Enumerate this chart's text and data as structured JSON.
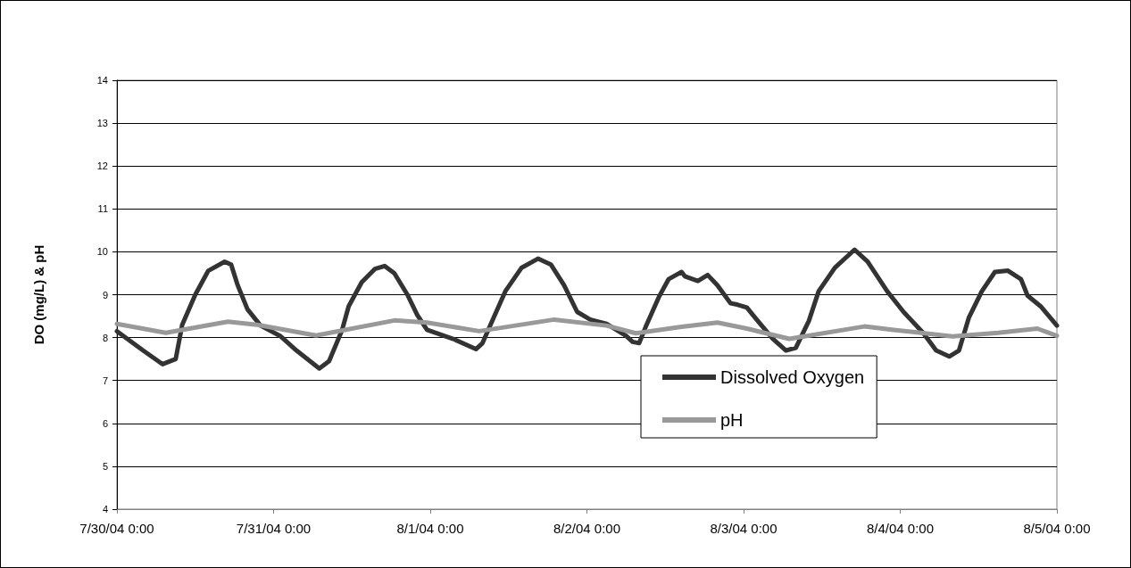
{
  "chart_data": {
    "type": "line",
    "ylabel": "DO (mg/L) & pH",
    "ylim": [
      4,
      14
    ],
    "yticks": [
      4,
      5,
      6,
      7,
      8,
      9,
      10,
      11,
      12,
      13,
      14
    ],
    "xlim": [
      "--07-30T00:00",
      "--08-05T00:00"
    ],
    "xticks": [
      {
        "value": "--07-30T00:00",
        "label": "7/30/04 0:00"
      },
      {
        "value": "--07-31T00:00",
        "label": "7/31/04 0:00"
      },
      {
        "value": "--08-01T00:00",
        "label": "8/1/04 0:00"
      },
      {
        "value": "--08-02T00:00",
        "label": "8/2/04 0:00"
      },
      {
        "value": "--08-03T00:00",
        "label": "8/3/04 0:00"
      },
      {
        "value": "--08-04T00:00",
        "label": "8/4/04 0:00"
      },
      {
        "value": "--08-05T00:00",
        "label": "8/5/04 0:00"
      }
    ],
    "grid": "y",
    "legend": "bottom right",
    "marker": "none",
    "line_style": "solid",
    "series": [
      {
        "name": "Dissolved Oxygen",
        "color": "#333333",
        "x": [
          "--07-30T00:00",
          "--07-30T04:00",
          "--07-30T07:00",
          "--07-30T09:00",
          "--07-30T10:00",
          "--07-30T12:00",
          "--07-30T14:00",
          "--07-30T16:30",
          "--07-30T17:30",
          "--07-30T18:30",
          "--07-30T20:00",
          "--07-30T22:00",
          "--07-31T01:00",
          "--07-31T03:30",
          "--07-31T07:00",
          "--07-31T08:30",
          "--07-31T10:30",
          "--07-31T11:30",
          "--07-31T13:30",
          "--07-31T15:30",
          "--07-31T17:00",
          "--07-31T18:30",
          "--07-31T20:30",
          "--07-31T22:00",
          "--07-31T23:30",
          "--08-01T03:30",
          "--08-01T07:00",
          "--08-01T08:00",
          "--08-01T09:30",
          "--08-01T11:30",
          "--08-01T14:00",
          "--08-01T16:30",
          "--08-01T18:30",
          "--08-01T20:30",
          "--08-01T22:30",
          "--08-02T00:30",
          "--08-02T03:00",
          "--08-02T06:00",
          "--08-02T07:00",
          "--08-02T08:00",
          "--08-02T09:00",
          "--08-02T11:00",
          "--08-02T12:30",
          "--08-02T14:30",
          "--08-02T15:00",
          "--08-02T17:00",
          "--08-02T18:30",
          "--08-02T20:00",
          "--08-02T22:00",
          "--08-02T23:00",
          "--08-03T00:30",
          "--08-03T02:00",
          "--08-03T04:30",
          "--08-03T06:30",
          "--08-03T08:00",
          "--08-03T10:00",
          "--08-03T11:30",
          "--08-03T14:00",
          "--08-03T17:00",
          "--08-03T19:00",
          "--08-03T22:00",
          "--08-04T00:30",
          "--08-04T03:30",
          "--08-04T05:30",
          "--08-04T07:30",
          "--08-04T09:00",
          "--08-04T10:30",
          "--08-04T12:30",
          "--08-04T14:30",
          "--08-04T16:30",
          "--08-04T18:30",
          "--08-04T19:30",
          "--08-04T21:30",
          "--08-05T00:00"
        ],
        "values": [
          8.15,
          7.7,
          7.38,
          7.5,
          8.3,
          9.0,
          9.56,
          9.77,
          9.7,
          9.22,
          8.66,
          8.28,
          8.04,
          7.7,
          7.28,
          7.45,
          8.18,
          8.73,
          9.29,
          9.6,
          9.67,
          9.5,
          9.0,
          8.53,
          8.18,
          7.97,
          7.73,
          7.87,
          8.39,
          9.08,
          9.63,
          9.84,
          9.7,
          9.22,
          8.6,
          8.42,
          8.32,
          8.04,
          7.9,
          7.87,
          8.25,
          8.94,
          9.36,
          9.53,
          9.43,
          9.32,
          9.46,
          9.22,
          8.8,
          8.77,
          8.7,
          8.42,
          7.97,
          7.7,
          7.76,
          8.39,
          9.08,
          9.63,
          10.05,
          9.77,
          9.08,
          8.6,
          8.11,
          7.7,
          7.56,
          7.7,
          8.46,
          9.08,
          9.53,
          9.56,
          9.36,
          8.98,
          8.73,
          8.28
        ]
      },
      {
        "name": "pH",
        "color": "#999999",
        "x": [
          "--07-30T00:00",
          "--07-30T07:30",
          "--07-30T17:00",
          "--07-30T21:30",
          "--07-31T06:30",
          "--07-31T18:30",
          "--07-31T23:30",
          "--08-01T07:30",
          "--08-01T19:00",
          "--08-02T03:00",
          "--08-02T07:30",
          "--08-02T14:30",
          "--08-02T20:00",
          "--08-03T00:30",
          "--08-03T07:00",
          "--08-03T18:30",
          "--08-03T23:00",
          "--08-04T08:00",
          "--08-04T15:00",
          "--08-04T21:00",
          "--08-05T00:00"
        ],
        "values": [
          8.32,
          8.11,
          8.37,
          8.3,
          8.05,
          8.4,
          8.35,
          8.15,
          8.42,
          8.28,
          8.1,
          8.25,
          8.35,
          8.21,
          7.97,
          8.26,
          8.18,
          8.03,
          8.11,
          8.21,
          8.04
        ]
      }
    ]
  }
}
